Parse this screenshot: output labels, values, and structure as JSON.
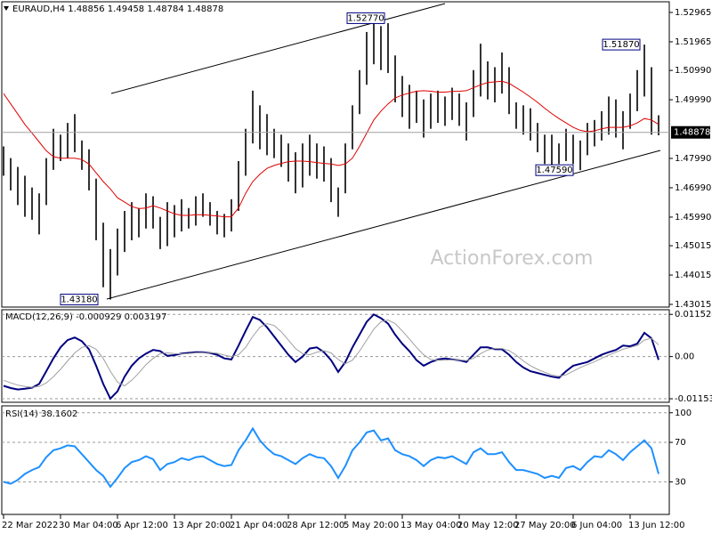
{
  "chart_data": [
    {
      "type": "ohlc",
      "title": "EURAUD,H4 1.48856 1.49458 1.48784 1.48878",
      "watermark": "ActionForex.com",
      "color": "#000000",
      "categories": [
        "22 Mar 2022",
        null,
        null,
        null,
        null,
        null,
        null,
        null,
        "30 Mar 04:00",
        null,
        null,
        null,
        null,
        null,
        null,
        null,
        "6 Apr 12:00",
        null,
        null,
        null,
        null,
        null,
        null,
        null,
        "13 Apr 20:00",
        null,
        null,
        null,
        null,
        null,
        null,
        null,
        "21 Apr 04:00",
        null,
        null,
        null,
        null,
        null,
        null,
        null,
        "28 Apr 12:00",
        null,
        null,
        null,
        null,
        null,
        null,
        null,
        "5 May 20:00",
        null,
        null,
        null,
        null,
        null,
        null,
        null,
        "13 May 04:00",
        null,
        null,
        null,
        null,
        null,
        null,
        null,
        "20 May 12:00",
        null,
        null,
        null,
        null,
        null,
        null,
        null,
        "27 May 20:00",
        null,
        null,
        null,
        null,
        null,
        null,
        null,
        "6 Jun 04:00",
        null,
        null,
        null,
        null,
        null,
        null,
        null,
        "13 Jun 12:00",
        null,
        null,
        null,
        null
      ],
      "high": [
        1.484,
        1.48,
        1.477,
        1.474,
        1.47,
        1.468,
        1.48,
        1.49,
        1.488,
        1.492,
        1.495,
        1.486,
        1.483,
        1.473,
        1.458,
        1.449,
        1.456,
        1.462,
        1.465,
        1.463,
        1.468,
        1.467,
        1.46,
        1.465,
        1.464,
        1.466,
        1.463,
        1.467,
        1.468,
        1.465,
        1.462,
        1.461,
        1.466,
        1.479,
        1.49,
        1.503,
        1.498,
        1.495,
        1.49,
        1.488,
        1.485,
        1.482,
        1.485,
        1.488,
        1.485,
        1.484,
        1.48,
        1.47,
        1.485,
        1.498,
        1.51,
        1.523,
        1.5277,
        1.525,
        1.526,
        1.515,
        1.508,
        1.505,
        1.503,
        1.5,
        1.502,
        1.503,
        1.501,
        1.504,
        1.502,
        1.499,
        1.51,
        1.519,
        1.513,
        1.511,
        1.516,
        1.511,
        1.499,
        1.498,
        1.497,
        1.492,
        1.488,
        1.488,
        1.485,
        1.49,
        1.488,
        1.486,
        1.492,
        1.493,
        1.496,
        1.501,
        1.5,
        1.496,
        1.502,
        1.51,
        1.5187,
        1.511,
        1.4946
      ],
      "low": [
        1.474,
        1.469,
        1.464,
        1.46,
        1.459,
        1.454,
        1.464,
        1.476,
        1.479,
        1.48,
        1.482,
        1.476,
        1.469,
        1.452,
        1.436,
        1.4318,
        1.44,
        1.448,
        1.452,
        1.453,
        1.456,
        1.456,
        1.449,
        1.45,
        1.453,
        1.455,
        1.456,
        1.457,
        1.46,
        1.457,
        1.454,
        1.453,
        1.455,
        1.462,
        1.474,
        1.485,
        1.483,
        1.481,
        1.48,
        1.477,
        1.472,
        1.468,
        1.47,
        1.474,
        1.473,
        1.472,
        1.465,
        1.46,
        1.468,
        1.483,
        1.495,
        1.505,
        1.512,
        1.51,
        1.509,
        1.499,
        1.494,
        1.49,
        1.492,
        1.487,
        1.49,
        1.492,
        1.491,
        1.493,
        1.491,
        1.486,
        1.494,
        1.501,
        1.5,
        1.499,
        1.502,
        1.495,
        1.49,
        1.488,
        1.486,
        1.482,
        1.478,
        1.477,
        1.478,
        1.479,
        1.478,
        1.4759,
        1.481,
        1.484,
        1.486,
        1.488,
        1.487,
        1.483,
        1.49,
        1.496,
        1.501,
        1.488,
        1.4878
      ],
      "overlay": {
        "color": "#e00000",
        "values": [
          1.502,
          1.4985,
          1.495,
          1.4915,
          1.4885,
          1.4855,
          1.4825,
          1.4805,
          1.48,
          1.48,
          1.48,
          1.4795,
          1.478,
          1.475,
          1.472,
          1.4695,
          1.4665,
          1.465,
          1.4635,
          1.4628,
          1.463,
          1.4638,
          1.463,
          1.462,
          1.461,
          1.4605,
          1.4605,
          1.4607,
          1.4607,
          1.4605,
          1.4603,
          1.46,
          1.46,
          1.463,
          1.468,
          1.472,
          1.4745,
          1.4765,
          1.4775,
          1.4782,
          1.4788,
          1.479,
          1.479,
          1.4788,
          1.4785,
          1.4782,
          1.478,
          1.4775,
          1.478,
          1.48,
          1.484,
          1.4885,
          1.493,
          1.496,
          1.4985,
          1.5005,
          1.5015,
          1.5022,
          1.5028,
          1.503,
          1.5028,
          1.5025,
          1.5025,
          1.5027,
          1.5028,
          1.503,
          1.504,
          1.505,
          1.5058,
          1.506,
          1.5062,
          1.5055,
          1.504,
          1.5025,
          1.5008,
          1.499,
          1.497,
          1.4952,
          1.4935,
          1.492,
          1.4905,
          1.4895,
          1.489,
          1.4893,
          1.49,
          1.4905,
          1.4905,
          1.4905,
          1.491,
          1.492,
          1.4935,
          1.493,
          1.4915
        ]
      },
      "price_labels": [
        {
          "value": 1.5277,
          "label": "1.52770"
        },
        {
          "value": 1.5187,
          "label": "1.51870"
        },
        {
          "value": 1.4759,
          "label": "1.47590"
        },
        {
          "value": 1.4318,
          "label": "1.43180"
        }
      ],
      "last_price": {
        "value": 1.48878,
        "label": "1.48878"
      },
      "ylim": [
        1.42924,
        1.53329
      ],
      "yticks": [
        {
          "value": 1.52965,
          "label": "1.52965"
        },
        {
          "value": 1.51965,
          "label": "1.51965"
        },
        {
          "value": 1.5099,
          "label": "1.50990"
        },
        {
          "value": 1.4999,
          "label": "1.49990"
        },
        {
          "value": 1.4799,
          "label": "1.47990"
        },
        {
          "value": 1.4699,
          "label": "1.46990"
        },
        {
          "value": 1.4599,
          "label": "1.45990"
        },
        {
          "value": 1.45015,
          "label": "1.45015"
        },
        {
          "value": 1.44015,
          "label": "1.44015"
        },
        {
          "value": 1.43015,
          "label": "1.43015"
        }
      ],
      "grid": false
    },
    {
      "type": "line",
      "title": "MACD(12,26,9) -0.000929 0.003197",
      "series": [
        {
          "color": "#000080",
          "values": [
            -0.008,
            -0.0086,
            -0.009,
            -0.0088,
            -0.0085,
            -0.0075,
            -0.004,
            -0.0005,
            0.0025,
            0.0045,
            0.0052,
            0.0042,
            0.002,
            -0.0025,
            -0.0075,
            -0.0115,
            -0.0095,
            -0.0055,
            -0.0025,
            -0.0005,
            0.0008,
            0.0018,
            0.0015,
            0.0002,
            0.0004,
            0.0008,
            0.001,
            0.0012,
            0.0012,
            0.001,
            0.0005,
            -0.0005,
            -0.0008,
            0.003,
            0.007,
            0.0108,
            0.01,
            0.008,
            0.0055,
            0.003,
            0.0005,
            -0.0015,
            0.0,
            0.0022,
            0.0025,
            0.0012,
            -0.001,
            -0.0042,
            -0.0015,
            0.0025,
            0.006,
            0.0095,
            0.0115,
            0.0105,
            0.009,
            0.006,
            0.0035,
            0.0015,
            -0.001,
            -0.0025,
            -0.0015,
            -0.0008,
            -0.0005,
            -0.0008,
            -0.001,
            -0.0015,
            0.0005,
            0.0025,
            0.0025,
            0.002,
            0.002,
            0.0005,
            -0.0015,
            -0.003,
            -0.004,
            -0.0045,
            -0.005,
            -0.0055,
            -0.0058,
            -0.004,
            -0.0025,
            -0.002,
            -0.0015,
            -0.0005,
            0.0005,
            0.0012,
            0.0018,
            0.003,
            0.0028,
            0.0035,
            0.0065,
            0.005,
            -0.0009
          ]
        },
        {
          "color": "#a0a0a0",
          "values": [
            -0.0065,
            -0.0072,
            -0.0078,
            -0.0082,
            -0.0084,
            -0.0082,
            -0.0072,
            -0.0055,
            -0.0035,
            -0.0012,
            0.001,
            0.0025,
            0.003,
            0.002,
            -0.0005,
            -0.004,
            -0.007,
            -0.008,
            -0.0065,
            -0.0045,
            -0.0022,
            -0.0005,
            0.0008,
            0.001,
            0.0008,
            0.0007,
            0.0008,
            0.001,
            0.0011,
            0.0011,
            0.0009,
            0.0004,
            0.0,
            0.0005,
            0.0025,
            0.0055,
            0.008,
            0.009,
            0.0085,
            0.0068,
            0.0045,
            0.0022,
            0.0008,
            0.0005,
            0.0012,
            0.0016,
            0.001,
            -0.0008,
            -0.002,
            -0.001,
            0.0015,
            0.0045,
            0.0075,
            0.0095,
            0.01,
            0.009,
            0.007,
            0.0048,
            0.0025,
            0.0005,
            -0.0008,
            -0.001,
            -0.001,
            -0.0009,
            -0.0009,
            -0.0011,
            -0.0005,
            0.0008,
            0.0018,
            0.0022,
            0.0022,
            0.0016,
            0.0004,
            -0.0012,
            -0.0025,
            -0.0035,
            -0.0043,
            -0.005,
            -0.0054,
            -0.005,
            -0.004,
            -0.003,
            -0.0022,
            -0.0014,
            -0.0005,
            0.0004,
            0.0012,
            0.002,
            0.0025,
            0.003,
            0.0045,
            0.005,
            0.0032
          ]
        }
      ],
      "ylim": [
        -0.0125,
        0.0128
      ],
      "yticks": [
        0.011524,
        {
          "value": 0,
          "label": "0.00"
        },
        -0.011537
      ],
      "grid": true
    },
    {
      "type": "line",
      "title": "RSI(14) 38.1602",
      "series": [
        {
          "color": "#1e90ff",
          "values": [
            30,
            28,
            32,
            38,
            42,
            45,
            55,
            62,
            64,
            67,
            66,
            58,
            50,
            42,
            36,
            25,
            34,
            44,
            50,
            52,
            56,
            53,
            42,
            48,
            50,
            54,
            52,
            55,
            56,
            52,
            48,
            46,
            47,
            62,
            72,
            84,
            72,
            64,
            58,
            56,
            52,
            48,
            54,
            58,
            55,
            54,
            46,
            34,
            46,
            62,
            70,
            80,
            82,
            72,
            74,
            62,
            58,
            56,
            52,
            46,
            52,
            55,
            54,
            56,
            52,
            48,
            60,
            64,
            58,
            58,
            60,
            50,
            42,
            42,
            40,
            38,
            34,
            36,
            34,
            44,
            46,
            42,
            50,
            56,
            55,
            62,
            58,
            52,
            60,
            66,
            72,
            64,
            38
          ]
        }
      ],
      "ylim": [
        -3,
        107
      ],
      "yticks": [
        100,
        70,
        30
      ],
      "grid": true
    }
  ]
}
